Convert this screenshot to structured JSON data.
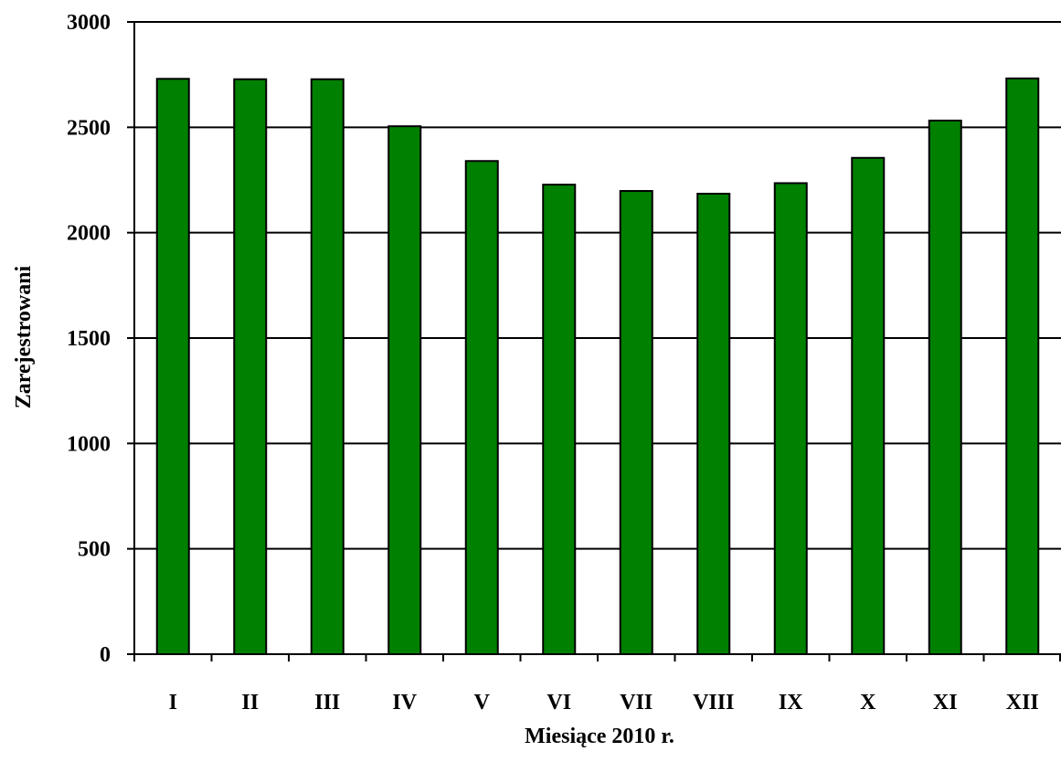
{
  "chart_data": {
    "type": "bar",
    "categories": [
      "I",
      "II",
      "III",
      "IV",
      "V",
      "VI",
      "VII",
      "VIII",
      "IX",
      "X",
      "XI",
      "XII"
    ],
    "values": [
      2730,
      2728,
      2728,
      2505,
      2340,
      2228,
      2198,
      2185,
      2235,
      2355,
      2532,
      2732
    ],
    "title": "",
    "xlabel": "Miesiące 2010 r.",
    "ylabel": "Zarejestrowani",
    "ylim": [
      0,
      3000
    ],
    "yticks": [
      "0",
      "500",
      "1000",
      "1500",
      "2000",
      "2500",
      "3000"
    ],
    "grid": true,
    "legend": "none",
    "bar_color": "#008000",
    "bar_edge_color": "#000000"
  }
}
